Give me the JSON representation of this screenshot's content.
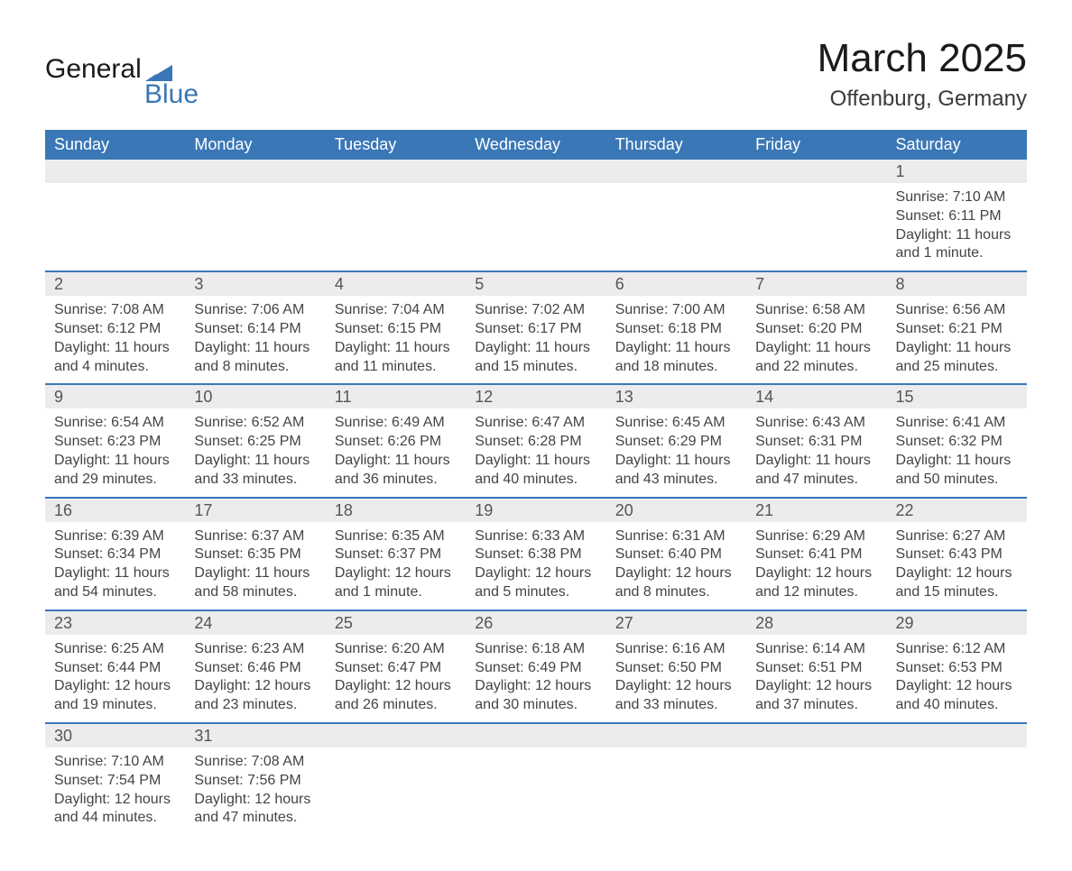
{
  "logo": {
    "text1": "General",
    "text2": "Blue",
    "brand_color": "#3a77b6"
  },
  "title": "March 2025",
  "subtitle": "Offenburg, Germany",
  "header_bg": "#3a77b6",
  "daynum_bg": "#ececec",
  "row_border": "#3a77b6",
  "text_color": "#444444",
  "day_headers": [
    "Sunday",
    "Monday",
    "Tuesday",
    "Wednesday",
    "Thursday",
    "Friday",
    "Saturday"
  ],
  "weeks": [
    {
      "nums": [
        "",
        "",
        "",
        "",
        "",
        "",
        "1"
      ],
      "cells": [
        "",
        "",
        "",
        "",
        "",
        "",
        "Sunrise: 7:10 AM\nSunset: 6:11 PM\nDaylight: 11 hours and 1 minute."
      ]
    },
    {
      "nums": [
        "2",
        "3",
        "4",
        "5",
        "6",
        "7",
        "8"
      ],
      "cells": [
        "Sunrise: 7:08 AM\nSunset: 6:12 PM\nDaylight: 11 hours and 4 minutes.",
        "Sunrise: 7:06 AM\nSunset: 6:14 PM\nDaylight: 11 hours and 8 minutes.",
        "Sunrise: 7:04 AM\nSunset: 6:15 PM\nDaylight: 11 hours and 11 minutes.",
        "Sunrise: 7:02 AM\nSunset: 6:17 PM\nDaylight: 11 hours and 15 minutes.",
        "Sunrise: 7:00 AM\nSunset: 6:18 PM\nDaylight: 11 hours and 18 minutes.",
        "Sunrise: 6:58 AM\nSunset: 6:20 PM\nDaylight: 11 hours and 22 minutes.",
        "Sunrise: 6:56 AM\nSunset: 6:21 PM\nDaylight: 11 hours and 25 minutes."
      ]
    },
    {
      "nums": [
        "9",
        "10",
        "11",
        "12",
        "13",
        "14",
        "15"
      ],
      "cells": [
        "Sunrise: 6:54 AM\nSunset: 6:23 PM\nDaylight: 11 hours and 29 minutes.",
        "Sunrise: 6:52 AM\nSunset: 6:25 PM\nDaylight: 11 hours and 33 minutes.",
        "Sunrise: 6:49 AM\nSunset: 6:26 PM\nDaylight: 11 hours and 36 minutes.",
        "Sunrise: 6:47 AM\nSunset: 6:28 PM\nDaylight: 11 hours and 40 minutes.",
        "Sunrise: 6:45 AM\nSunset: 6:29 PM\nDaylight: 11 hours and 43 minutes.",
        "Sunrise: 6:43 AM\nSunset: 6:31 PM\nDaylight: 11 hours and 47 minutes.",
        "Sunrise: 6:41 AM\nSunset: 6:32 PM\nDaylight: 11 hours and 50 minutes."
      ]
    },
    {
      "nums": [
        "16",
        "17",
        "18",
        "19",
        "20",
        "21",
        "22"
      ],
      "cells": [
        "Sunrise: 6:39 AM\nSunset: 6:34 PM\nDaylight: 11 hours and 54 minutes.",
        "Sunrise: 6:37 AM\nSunset: 6:35 PM\nDaylight: 11 hours and 58 minutes.",
        "Sunrise: 6:35 AM\nSunset: 6:37 PM\nDaylight: 12 hours and 1 minute.",
        "Sunrise: 6:33 AM\nSunset: 6:38 PM\nDaylight: 12 hours and 5 minutes.",
        "Sunrise: 6:31 AM\nSunset: 6:40 PM\nDaylight: 12 hours and 8 minutes.",
        "Sunrise: 6:29 AM\nSunset: 6:41 PM\nDaylight: 12 hours and 12 minutes.",
        "Sunrise: 6:27 AM\nSunset: 6:43 PM\nDaylight: 12 hours and 15 minutes."
      ]
    },
    {
      "nums": [
        "23",
        "24",
        "25",
        "26",
        "27",
        "28",
        "29"
      ],
      "cells": [
        "Sunrise: 6:25 AM\nSunset: 6:44 PM\nDaylight: 12 hours and 19 minutes.",
        "Sunrise: 6:23 AM\nSunset: 6:46 PM\nDaylight: 12 hours and 23 minutes.",
        "Sunrise: 6:20 AM\nSunset: 6:47 PM\nDaylight: 12 hours and 26 minutes.",
        "Sunrise: 6:18 AM\nSunset: 6:49 PM\nDaylight: 12 hours and 30 minutes.",
        "Sunrise: 6:16 AM\nSunset: 6:50 PM\nDaylight: 12 hours and 33 minutes.",
        "Sunrise: 6:14 AM\nSunset: 6:51 PM\nDaylight: 12 hours and 37 minutes.",
        "Sunrise: 6:12 AM\nSunset: 6:53 PM\nDaylight: 12 hours and 40 minutes."
      ]
    },
    {
      "nums": [
        "30",
        "31",
        "",
        "",
        "",
        "",
        ""
      ],
      "cells": [
        "Sunrise: 7:10 AM\nSunset: 7:54 PM\nDaylight: 12 hours and 44 minutes.",
        "Sunrise: 7:08 AM\nSunset: 7:56 PM\nDaylight: 12 hours and 47 minutes.",
        "",
        "",
        "",
        "",
        ""
      ]
    }
  ]
}
